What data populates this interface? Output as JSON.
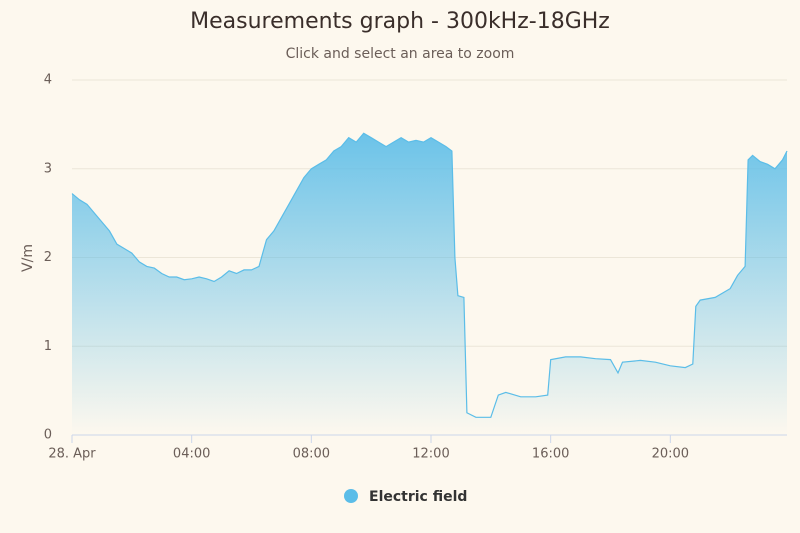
{
  "chart_data": {
    "type": "area",
    "title": "Measurements graph - 300kHz-18GHz",
    "subtitle": "Click and select an area to zoom",
    "y_label": "V/m",
    "grid": true,
    "legend_position": "bottom",
    "xlim": [
      0,
      23.9
    ],
    "xticks": [
      {
        "value": 0,
        "label": "28. Apr"
      },
      {
        "value": 4,
        "label": "04:00"
      },
      {
        "value": 8,
        "label": "08:00"
      },
      {
        "value": 12,
        "label": "12:00"
      },
      {
        "value": 16,
        "label": "16:00"
      },
      {
        "value": 20,
        "label": "20:00"
      }
    ],
    "ylim": [
      0,
      4
    ],
    "yticks": [
      0,
      1,
      2,
      3,
      4
    ],
    "x": [
      0,
      0.25,
      0.5,
      0.75,
      1,
      1.25,
      1.5,
      1.75,
      2,
      2.25,
      2.5,
      2.75,
      3,
      3.25,
      3.5,
      3.75,
      4,
      4.25,
      4.5,
      4.75,
      5,
      5.25,
      5.5,
      5.75,
      6,
      6.25,
      6.5,
      6.75,
      7,
      7.25,
      7.5,
      7.75,
      8,
      8.25,
      8.5,
      8.75,
      9,
      9.25,
      9.5,
      9.75,
      10,
      10.25,
      10.5,
      10.75,
      11,
      11.25,
      11.5,
      11.75,
      12,
      12.25,
      12.5,
      12.7,
      12.8,
      12.9,
      13.1,
      13.2,
      13.5,
      14,
      14.25,
      14.5,
      15,
      15.5,
      15.9,
      16,
      16.5,
      17,
      17.5,
      18,
      18.25,
      18.4,
      19,
      19.5,
      20,
      20.5,
      20.75,
      20.85,
      21,
      21.5,
      22,
      22.25,
      22.5,
      22.6,
      22.75,
      23,
      23.25,
      23.5,
      23.75,
      23.9
    ],
    "series": [
      {
        "name": "Electric field",
        "color": "#5bbde8",
        "values": [
          2.72,
          2.65,
          2.6,
          2.5,
          2.4,
          2.3,
          2.15,
          2.1,
          2.05,
          1.95,
          1.9,
          1.88,
          1.82,
          1.78,
          1.78,
          1.75,
          1.76,
          1.78,
          1.76,
          1.73,
          1.78,
          1.85,
          1.82,
          1.86,
          1.86,
          1.9,
          2.2,
          2.3,
          2.45,
          2.6,
          2.75,
          2.9,
          3.0,
          3.05,
          3.1,
          3.2,
          3.25,
          3.35,
          3.3,
          3.4,
          3.35,
          3.3,
          3.25,
          3.3,
          3.35,
          3.3,
          3.32,
          3.3,
          3.35,
          3.3,
          3.25,
          3.2,
          2.0,
          1.57,
          1.55,
          0.25,
          0.2,
          0.2,
          0.45,
          0.48,
          0.43,
          0.43,
          0.45,
          0.85,
          0.88,
          0.88,
          0.86,
          0.85,
          0.7,
          0.82,
          0.84,
          0.82,
          0.78,
          0.76,
          0.8,
          1.45,
          1.52,
          1.55,
          1.65,
          1.8,
          1.9,
          3.1,
          3.15,
          3.08,
          3.05,
          3.0,
          3.1,
          3.2
        ]
      }
    ]
  }
}
